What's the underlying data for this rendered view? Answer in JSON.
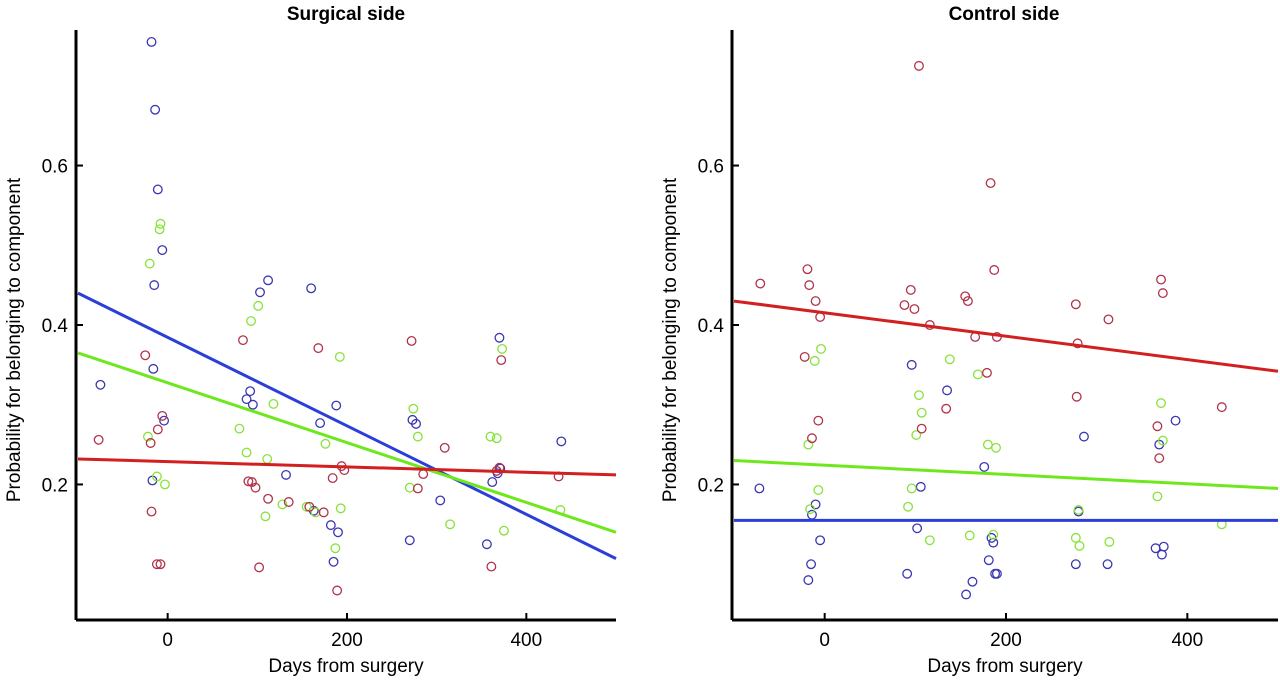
{
  "colors": {
    "red": "#d21f1f",
    "green": "#6ee81c",
    "blue": "#2b3fd8",
    "point_red": "#b0334a",
    "point_green": "#86e33a",
    "point_blue": "#3a37b0"
  },
  "chart_data": [
    {
      "type": "scatter",
      "title": "Surgical side",
      "xlabel": "Days from surgery",
      "ylabel": "Probability for belonging to component",
      "xlim": [
        -100,
        500
      ],
      "ylim": [
        0.03,
        0.77
      ],
      "xticks": [
        0,
        200,
        400
      ],
      "yticks": [
        0.2,
        0.4,
        0.6
      ],
      "xtick_labels": [
        "0",
        "200",
        "400"
      ],
      "ytick_labels": [
        "0.2",
        "0.4",
        "0.6"
      ],
      "fit_lines": [
        {
          "color": "blue",
          "x": [
            -100,
            500
          ],
          "y": [
            0.44,
            0.107
          ]
        },
        {
          "color": "green",
          "x": [
            -100,
            500
          ],
          "y": [
            0.365,
            0.14
          ]
        },
        {
          "color": "red",
          "x": [
            -100,
            500
          ],
          "y": [
            0.232,
            0.212
          ]
        }
      ],
      "series": [
        {
          "color": "point_blue",
          "x": [
            -75,
            -18,
            -17,
            -16,
            -15,
            -14,
            -11,
            -6,
            -4,
            88,
            92,
            95,
            103,
            112,
            132,
            160,
            163,
            170,
            182,
            185,
            188,
            190,
            270,
            273,
            277,
            304,
            356,
            362,
            368,
            370,
            371,
            439
          ],
          "y": [
            0.325,
            0.755,
            0.205,
            0.345,
            0.45,
            0.67,
            0.57,
            0.494,
            0.28,
            0.307,
            0.317,
            0.3,
            0.441,
            0.456,
            0.212,
            0.446,
            0.167,
            0.277,
            0.149,
            0.103,
            0.299,
            0.14,
            0.13,
            0.281,
            0.276,
            0.18,
            0.125,
            0.203,
            0.214,
            0.384,
            0.22,
            0.254
          ]
        },
        {
          "color": "point_green",
          "x": [
            -22,
            -20,
            -12,
            -9,
            -8,
            -3,
            80,
            88,
            93,
            101,
            109,
            111,
            118,
            128,
            155,
            165,
            176,
            187,
            192,
            193,
            270,
            274,
            279,
            315,
            360,
            367,
            373,
            375,
            438
          ],
          "y": [
            0.26,
            0.477,
            0.21,
            0.52,
            0.527,
            0.2,
            0.27,
            0.24,
            0.405,
            0.424,
            0.16,
            0.232,
            0.301,
            0.175,
            0.172,
            0.165,
            0.251,
            0.12,
            0.36,
            0.17,
            0.196,
            0.295,
            0.26,
            0.15,
            0.26,
            0.258,
            0.37,
            0.142,
            0.168
          ]
        },
        {
          "color": "point_red",
          "x": [
            -77,
            -25,
            -19,
            -18,
            -12,
            -11,
            -8,
            -6,
            84,
            90,
            94,
            98,
            102,
            112,
            135,
            158,
            168,
            174,
            184,
            189,
            194,
            197,
            272,
            279,
            285,
            309,
            361,
            367,
            370,
            372,
            436
          ],
          "y": [
            0.256,
            0.362,
            0.252,
            0.166,
            0.1,
            0.269,
            0.1,
            0.286,
            0.381,
            0.204,
            0.203,
            0.196,
            0.096,
            0.182,
            0.178,
            0.172,
            0.371,
            0.165,
            0.208,
            0.067,
            0.223,
            0.218,
            0.38,
            0.195,
            0.213,
            0.246,
            0.097,
            0.217,
            0.221,
            0.356,
            0.21
          ]
        }
      ]
    },
    {
      "type": "scatter",
      "title": "Control side",
      "xlabel": "Days from surgery",
      "ylabel": "Probability for belonging to component",
      "xlim": [
        -100,
        500
      ],
      "ylim": [
        0.03,
        0.77
      ],
      "xticks": [
        0,
        200,
        400
      ],
      "yticks": [
        0.2,
        0.4,
        0.6
      ],
      "xtick_labels": [
        "0",
        "200",
        "400"
      ],
      "ytick_labels": [
        "0.2",
        "0.4",
        "0.6"
      ],
      "fit_lines": [
        {
          "color": "red",
          "x": [
            -100,
            500
          ],
          "y": [
            0.43,
            0.342
          ]
        },
        {
          "color": "green",
          "x": [
            -100,
            500
          ],
          "y": [
            0.23,
            0.195
          ]
        },
        {
          "color": "blue",
          "x": [
            -100,
            500
          ],
          "y": [
            0.155,
            0.155
          ]
        }
      ],
      "series": [
        {
          "color": "point_blue",
          "x": [
            -72,
            -18,
            -15,
            -14,
            -10,
            -5,
            91,
            96,
            102,
            106,
            135,
            156,
            163,
            176,
            181,
            184,
            186,
            188,
            190,
            277,
            280,
            286,
            312,
            365,
            369,
            372,
            374,
            387
          ],
          "y": [
            0.195,
            0.08,
            0.1,
            0.162,
            0.175,
            0.13,
            0.088,
            0.35,
            0.145,
            0.197,
            0.318,
            0.062,
            0.078,
            0.222,
            0.105,
            0.133,
            0.127,
            0.088,
            0.088,
            0.1,
            0.166,
            0.26,
            0.1,
            0.12,
            0.25,
            0.112,
            0.122,
            0.28
          ]
        },
        {
          "color": "point_green",
          "x": [
            -18,
            -16,
            -11,
            -7,
            -4,
            92,
            96,
            101,
            104,
            107,
            116,
            138,
            160,
            169,
            180,
            186,
            189,
            277,
            280,
            281,
            314,
            367,
            371,
            373,
            438
          ],
          "y": [
            0.25,
            0.169,
            0.355,
            0.193,
            0.37,
            0.172,
            0.195,
            0.262,
            0.312,
            0.29,
            0.13,
            0.357,
            0.136,
            0.338,
            0.25,
            0.137,
            0.246,
            0.133,
            0.168,
            0.123,
            0.128,
            0.185,
            0.302,
            0.255,
            0.15
          ]
        },
        {
          "color": "point_red",
          "x": [
            -71,
            -22,
            -19,
            -17,
            -14,
            -10,
            -7,
            -5,
            88,
            95,
            99,
            104,
            107,
            116,
            134,
            155,
            158,
            166,
            179,
            183,
            187,
            190,
            277,
            278,
            279,
            313,
            367,
            369,
            371,
            373,
            438
          ],
          "y": [
            0.452,
            0.36,
            0.47,
            0.45,
            0.258,
            0.43,
            0.28,
            0.41,
            0.425,
            0.444,
            0.42,
            0.725,
            0.27,
            0.4,
            0.295,
            0.436,
            0.43,
            0.385,
            0.34,
            0.578,
            0.469,
            0.385,
            0.426,
            0.31,
            0.377,
            0.407,
            0.273,
            0.233,
            0.457,
            0.44,
            0.297
          ]
        }
      ]
    }
  ]
}
